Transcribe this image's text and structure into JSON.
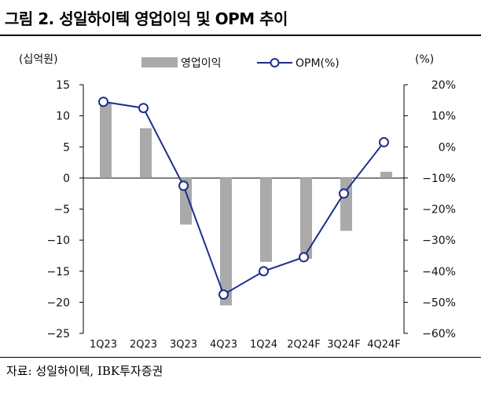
{
  "figure": {
    "title": "그림 2. 성일하이텍 영업이익 및 OPM 추이",
    "source": "자료: 성일하이텍, IBK투자증권"
  },
  "colors": {
    "bar": "#aaaaaa",
    "line": "#1c2e8c",
    "marker_fill": "#ffffff",
    "axis": "#000000"
  },
  "chart_data": {
    "type": "bar+line",
    "categories": [
      "1Q23",
      "2Q23",
      "3Q23",
      "4Q23",
      "1Q24",
      "2Q24F",
      "3Q24F",
      "4Q24F"
    ],
    "series": [
      {
        "name": "영업이익",
        "type": "bar",
        "axis": "left",
        "values": [
          12,
          8,
          -7.5,
          -20.5,
          -13.5,
          -13,
          -8.5,
          1
        ]
      },
      {
        "name": "OPM(%)",
        "type": "line",
        "axis": "right",
        "values": [
          14.5,
          12.5,
          -12.5,
          -47.5,
          -40,
          -35.5,
          -15,
          1.5
        ]
      }
    ],
    "left_axis": {
      "unit": "(십억원)",
      "min": -25,
      "max": 15,
      "step": 5,
      "ticks": [
        "15",
        "10",
        "5",
        "0",
        "−5",
        "−10",
        "−15",
        "−20",
        "−25"
      ]
    },
    "right_axis": {
      "unit": "(%)",
      "min": -60,
      "max": 20,
      "step": 10,
      "ticks": [
        "20%",
        "10%",
        "0%",
        "−10%",
        "−20%",
        "−30%",
        "−40%",
        "−50%",
        "−60%"
      ]
    },
    "legend": {
      "position": "top",
      "items": [
        "영업이익",
        "OPM(%)"
      ]
    }
  }
}
